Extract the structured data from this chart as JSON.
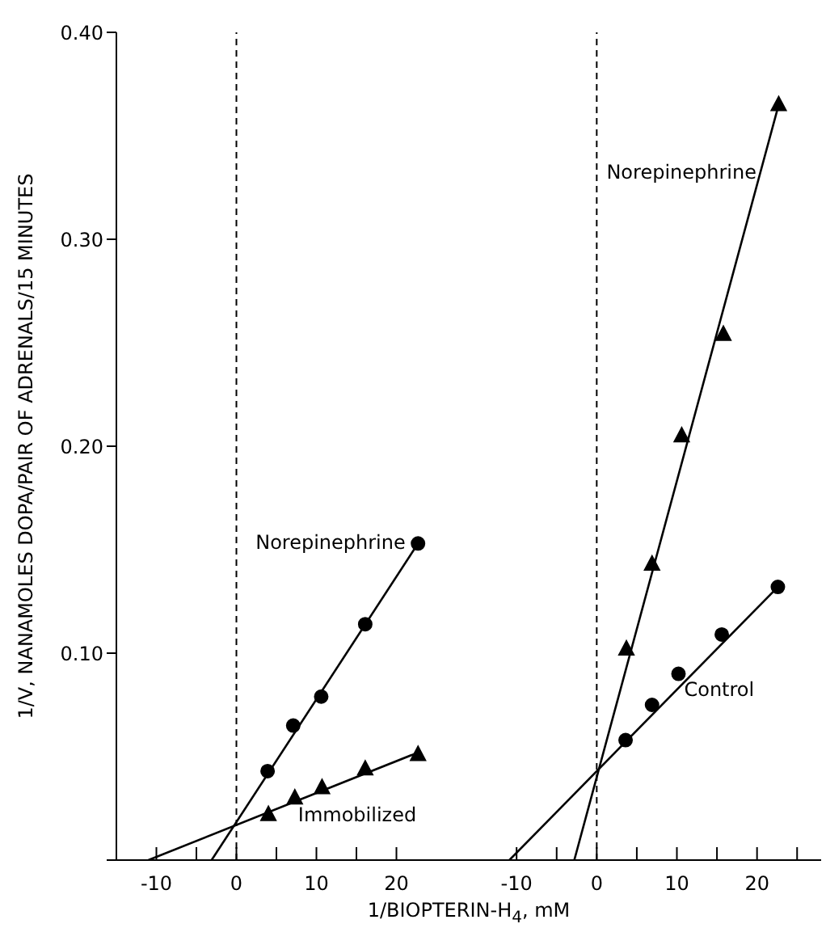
{
  "chart_data": [
    {
      "type": "scatter",
      "ylabel": "1/V, NANAMOLES DOPA/PAIR OF ADRENALS/15 MINUTES",
      "xlabel": "1/BIOPTERIN-H$_{4}$, mM",
      "xlim": [
        -15,
        25
      ],
      "xticks": [
        -10,
        {
          "value": -5,
          "label": null
        },
        0,
        {
          "value": 5,
          "label": null
        },
        10,
        {
          "value": 15,
          "label": null
        },
        20
      ],
      "ylim": [
        0,
        0.4
      ],
      "yticks": [
        {
          "value": 0,
          "label": null
        },
        {
          "value": 0.1,
          "label": "0.10"
        },
        {
          "value": 0.2,
          "label": "0.20"
        },
        {
          "value": 0.3,
          "label": "0.30"
        },
        {
          "value": 0.4,
          "label": "0.40"
        }
      ],
      "grid": false,
      "legend": false,
      "ref_lines": [
        {
          "axis": "x",
          "value": 0,
          "line_style": "dashed",
          "color": "#000000"
        }
      ],
      "series": [
        {
          "type": "line",
          "color": "#000000",
          "marker": "none",
          "x": [
            -3.1,
            22.7
          ],
          "values": [
            0,
            0.153
          ]
        },
        {
          "type": "line",
          "color": "#000000",
          "marker": "none",
          "x": [
            -11,
            22.7
          ],
          "values": [
            0,
            0.052
          ]
        },
        {
          "type": "scatter",
          "name": "Norepinephrine",
          "color": "#000000",
          "marker": "circle",
          "x": [
            3.9,
            7.1,
            10.6,
            16.1,
            22.7
          ],
          "values": [
            0.043,
            0.065,
            0.079,
            0.114,
            0.153
          ]
        },
        {
          "type": "scatter",
          "name": "Immobilized",
          "color": "#000000",
          "marker": "triangle",
          "x": [
            4.0,
            7.3,
            10.7,
            16.1,
            22.7
          ],
          "values": [
            0.022,
            0.03,
            0.035,
            0.044,
            0.051
          ]
        }
      ]
    },
    {
      "type": "scatter",
      "tick_labels": "x",
      "xlim": [
        -20,
        28
      ],
      "xticks": [
        -10,
        {
          "value": -5,
          "label": null
        },
        0,
        {
          "value": 5,
          "label": null
        },
        10,
        {
          "value": 15,
          "label": null
        },
        20,
        {
          "value": 25,
          "label": null
        }
      ],
      "ylim": [
        0,
        0.4
      ],
      "grid": false,
      "legend": false,
      "ref_lines": [
        {
          "axis": "x",
          "value": 0,
          "line_style": "dashed",
          "color": "#000000"
        }
      ],
      "series": [
        {
          "type": "line",
          "color": "#000000",
          "marker": "none",
          "x": [
            -2.8,
            22.7
          ],
          "values": [
            0,
            0.365
          ]
        },
        {
          "type": "line",
          "color": "#000000",
          "marker": "none",
          "x": [
            -10.9,
            22.6
          ],
          "values": [
            0,
            0.132
          ]
        },
        {
          "type": "scatter",
          "name": "Norepinephrine",
          "color": "#000000",
          "marker": "triangle",
          "x": [
            3.7,
            6.9,
            10.6,
            15.8,
            22.7
          ],
          "values": [
            0.102,
            0.143,
            0.205,
            0.254,
            0.365
          ]
        },
        {
          "type": "scatter",
          "name": "Control",
          "color": "#000000",
          "marker": "circle",
          "x": [
            3.6,
            6.9,
            10.2,
            15.6,
            22.6
          ],
          "values": [
            0.058,
            0.075,
            0.09,
            0.109,
            0.132
          ]
        }
      ]
    }
  ]
}
